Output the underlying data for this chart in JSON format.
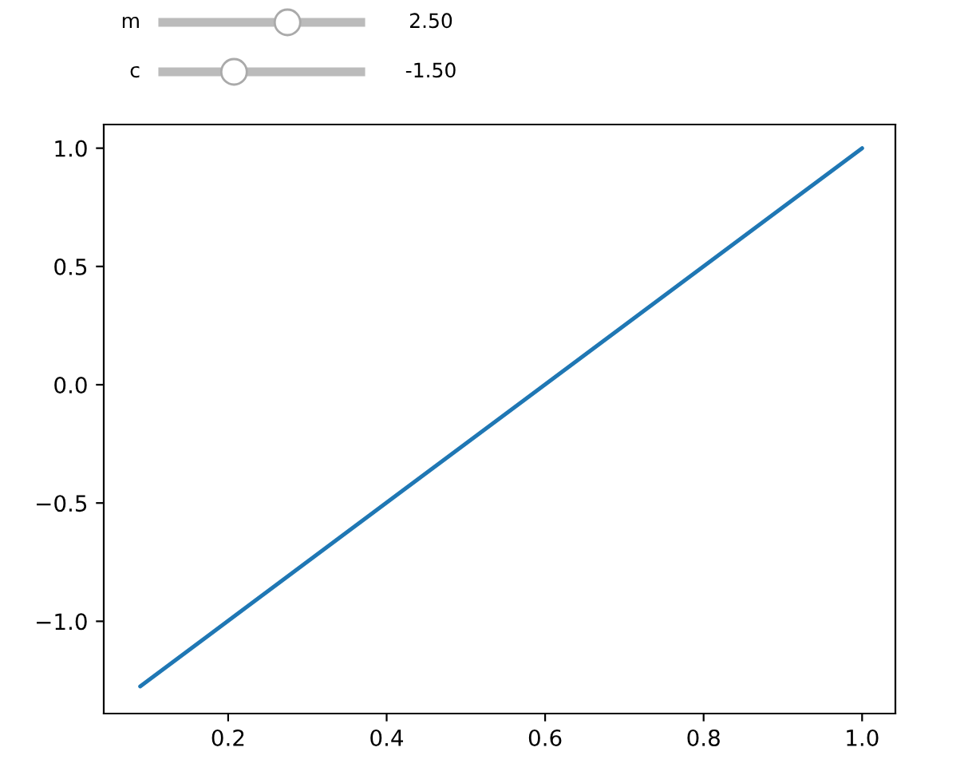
{
  "chart_data": {
    "type": "line",
    "x": [
      0.089,
      1.0
    ],
    "series": [
      {
        "color": "#1f77b4",
        "values": [
          -1.275,
          1.0
        ]
      }
    ],
    "xlim": [
      0.043,
      1.042
    ],
    "ylim": [
      -1.39,
      1.1
    ],
    "xticks": [
      {
        "value": 0.2,
        "label": "0.2"
      },
      {
        "value": 0.4,
        "label": "0.4"
      },
      {
        "value": 0.6,
        "label": "0.6"
      },
      {
        "value": 0.8,
        "label": "0.8"
      },
      {
        "value": 1.0,
        "label": "1.0"
      }
    ],
    "yticks": [
      {
        "value": -1.0,
        "label": "−1.0"
      },
      {
        "value": -0.5,
        "label": "−0.5"
      },
      {
        "value": 0.0,
        "label": "0.0"
      },
      {
        "value": 0.5,
        "label": "0.5"
      },
      {
        "value": 1.0,
        "label": "1.0"
      }
    ],
    "annotations": [
      "m",
      "2.50",
      "c",
      "-1.50"
    ],
    "grid": false
  }
}
